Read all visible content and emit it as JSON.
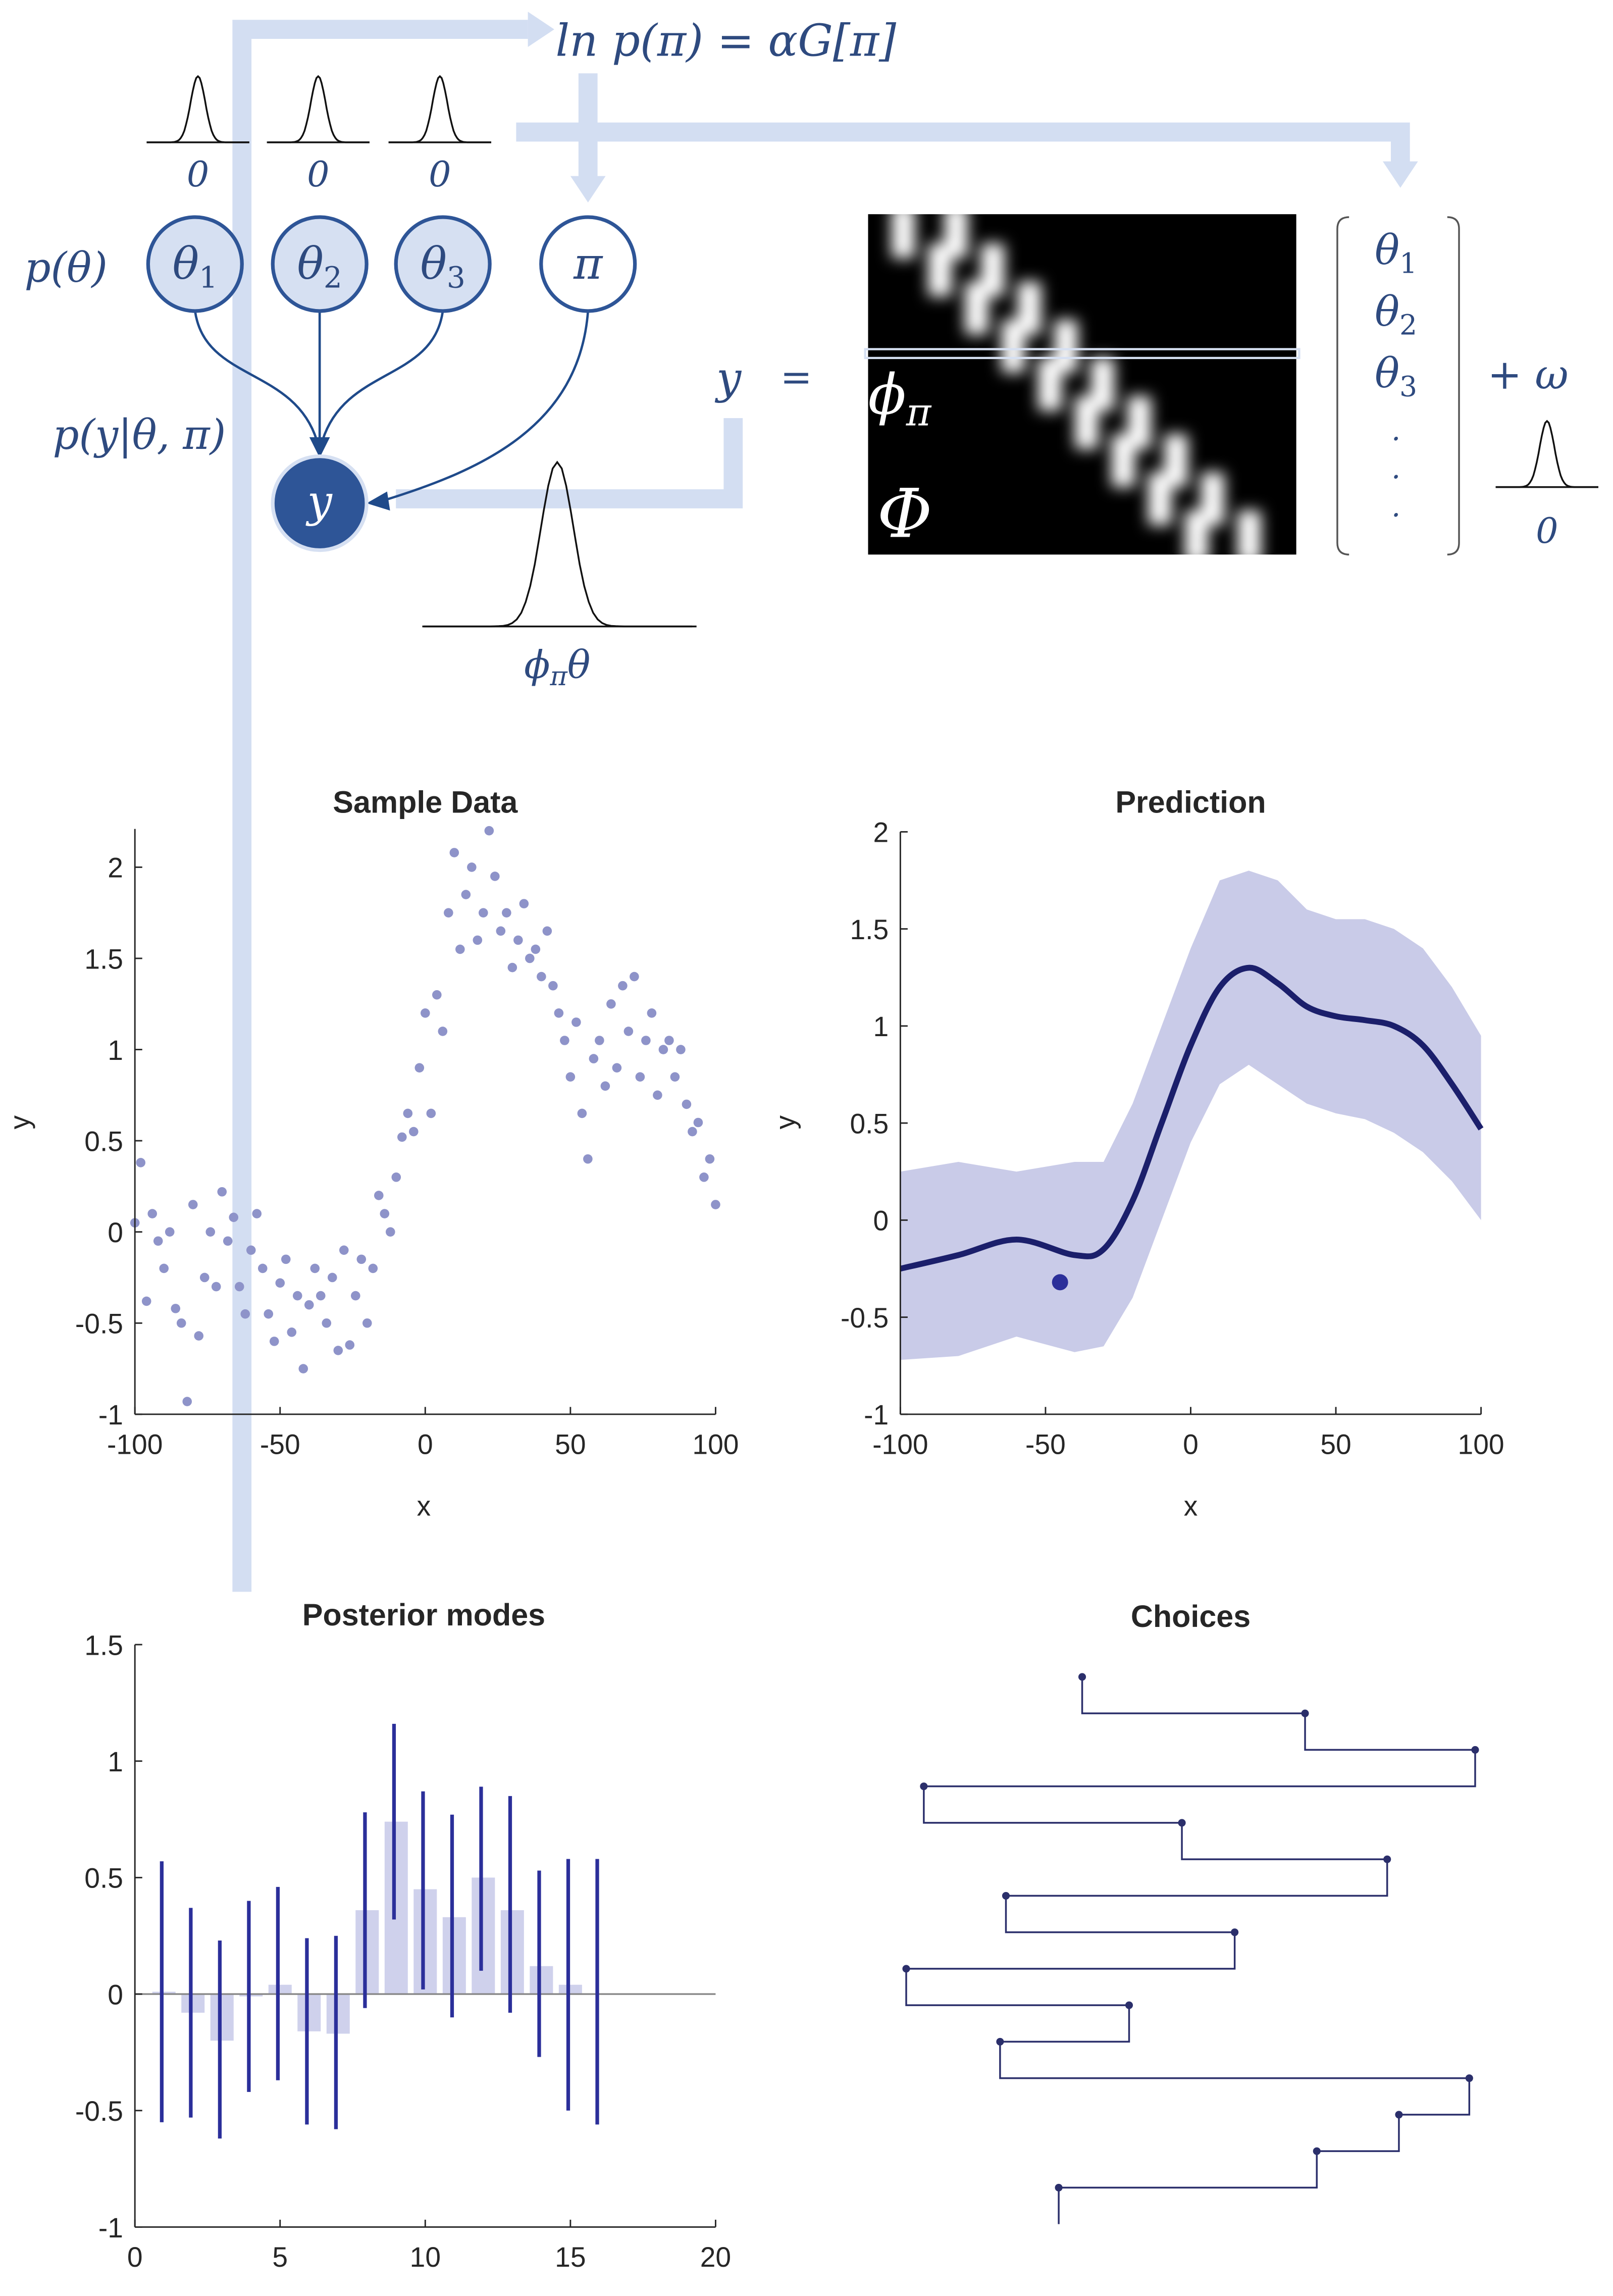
{
  "diagram": {
    "equation": "ln p(π) = αG[π]",
    "prior_zeros": [
      "0",
      "0",
      "0"
    ],
    "prior_label": "p(θ)",
    "likelihood_label": "p(y|θ, π)",
    "nodes": [
      {
        "base": "θ",
        "sub": "1"
      },
      {
        "base": "θ",
        "sub": "2"
      },
      {
        "base": "θ",
        "sub": "3"
      },
      {
        "base": "π",
        "sub": ""
      },
      {
        "base": "y",
        "sub": ""
      }
    ],
    "obs_label": {
      "base": "ϕ",
      "sub": "π",
      "tail": "θ"
    },
    "lhs": "y",
    "equals": "=",
    "row_label": {
      "base": "ϕ",
      "sub": "π"
    },
    "matrix_label": "Φ",
    "vector": [
      {
        "base": "θ",
        "sub": "1"
      },
      {
        "base": "θ",
        "sub": "2"
      },
      {
        "base": "θ",
        "sub": "3"
      },
      ".",
      ".",
      "."
    ],
    "noise": "+ ω",
    "noise_zero": "0"
  },
  "chart_data": [
    {
      "type": "scatter",
      "title": "Sample Data",
      "xlabel": "x",
      "ylabel": "y",
      "color": "#8e93c9",
      "xlim": [
        -100,
        100
      ],
      "ylim": [
        -1,
        2.21
      ],
      "xticks": [
        -100,
        -50,
        0,
        50,
        100
      ],
      "yticks": [
        -1,
        -0.5,
        0,
        0.5,
        1,
        1.5,
        2
      ],
      "x": [
        -100,
        -98,
        -96,
        -94,
        -92,
        -90,
        -88,
        -86,
        -84,
        -82,
        -80,
        -78,
        -76,
        -74,
        -72,
        -70,
        -68,
        -66,
        -64,
        -62,
        -60,
        -58,
        -56,
        -54,
        -52,
        -50,
        -48,
        -46,
        -44,
        -42,
        -40,
        -38,
        -36,
        -34,
        -32,
        -30,
        -28,
        -26,
        -24,
        -22,
        -20,
        -18,
        -16,
        -14,
        -12,
        -10,
        -8,
        -6,
        -4,
        -2,
        0,
        2,
        4,
        6,
        8,
        10,
        12,
        14,
        16,
        18,
        20,
        22,
        24,
        26,
        28,
        30,
        32,
        34,
        36,
        38,
        40,
        42,
        44,
        46,
        48,
        50,
        52,
        54,
        56,
        58,
        60,
        62,
        64,
        66,
        68,
        70,
        72,
        74,
        76,
        78,
        80,
        82,
        84,
        86,
        88,
        90,
        92,
        94,
        96,
        98,
        100
      ],
      "y": [
        0.05,
        0.38,
        -0.38,
        0.1,
        -0.05,
        -0.2,
        0.0,
        -0.42,
        -0.5,
        -0.93,
        0.15,
        -0.57,
        -0.25,
        0.0,
        -0.3,
        0.22,
        -0.05,
        0.08,
        -0.3,
        -0.45,
        -0.1,
        0.1,
        -0.2,
        -0.45,
        -0.6,
        -0.28,
        -0.15,
        -0.55,
        -0.35,
        -0.75,
        -0.4,
        -0.2,
        -0.35,
        -0.5,
        -0.25,
        -0.65,
        -0.1,
        -0.62,
        -0.35,
        -0.15,
        -0.5,
        -0.2,
        0.2,
        0.1,
        0.0,
        0.3,
        0.52,
        0.65,
        0.55,
        0.9,
        1.2,
        0.65,
        1.3,
        1.1,
        1.75,
        2.08,
        1.55,
        1.85,
        2.0,
        1.6,
        1.75,
        2.2,
        1.95,
        1.65,
        1.75,
        1.45,
        1.6,
        1.8,
        1.5,
        1.55,
        1.4,
        1.65,
        1.35,
        1.2,
        1.05,
        0.85,
        1.15,
        0.65,
        0.4,
        0.95,
        1.05,
        0.8,
        1.25,
        0.9,
        1.35,
        1.1,
        1.4,
        0.85,
        1.05,
        1.2,
        0.75,
        1.0,
        1.05,
        0.85,
        1.0,
        0.7,
        0.55,
        0.6,
        0.3,
        0.4,
        0.15
      ]
    },
    {
      "type": "line",
      "title": "Prediction",
      "xlabel": "x",
      "ylabel": "y",
      "color": "#1b1f6b",
      "band_color": "#c9cbe8",
      "point_color": "#2b2f9a",
      "xlim": [
        -100,
        100
      ],
      "ylim": [
        -1,
        2
      ],
      "xticks": [
        -100,
        -50,
        0,
        50,
        100
      ],
      "yticks": [
        -1,
        -0.5,
        0,
        0.5,
        1,
        1.5,
        2
      ],
      "x": [
        -100,
        -80,
        -60,
        -40,
        -30,
        -20,
        -10,
        0,
        10,
        20,
        30,
        40,
        50,
        60,
        70,
        80,
        90,
        100
      ],
      "mean": [
        -0.25,
        -0.18,
        -0.1,
        -0.18,
        -0.15,
        0.1,
        0.5,
        0.9,
        1.2,
        1.3,
        1.22,
        1.1,
        1.05,
        1.03,
        1.0,
        0.9,
        0.7,
        0.47
      ],
      "upper": [
        0.25,
        0.3,
        0.25,
        0.3,
        0.3,
        0.6,
        1.0,
        1.4,
        1.75,
        1.8,
        1.75,
        1.6,
        1.55,
        1.55,
        1.5,
        1.4,
        1.2,
        0.95
      ],
      "lower": [
        -0.72,
        -0.7,
        -0.6,
        -0.68,
        -0.65,
        -0.4,
        0.0,
        0.4,
        0.7,
        0.8,
        0.7,
        0.6,
        0.55,
        0.52,
        0.45,
        0.35,
        0.2,
        0.0
      ],
      "point": {
        "x": -45,
        "y": -0.32
      }
    },
    {
      "type": "bar",
      "title": "Posterior modes",
      "color": "#cfd1ec",
      "error_color": "#2b2f9a",
      "xlim": [
        0,
        20
      ],
      "ylim": [
        -1,
        1.5
      ],
      "xticks": [
        0,
        5,
        10,
        15,
        20
      ],
      "yticks": [
        -1,
        -0.5,
        0,
        0.5,
        1,
        1.5
      ],
      "x": [
        1,
        2,
        3,
        4,
        5,
        6,
        7,
        8,
        9,
        10,
        11,
        12,
        13,
        14,
        15,
        16
      ],
      "values": [
        0.01,
        -0.08,
        -0.2,
        -0.01,
        0.04,
        -0.16,
        -0.17,
        0.36,
        0.74,
        0.45,
        0.33,
        0.5,
        0.36,
        0.12,
        0.04,
        0
      ],
      "upper": [
        0.57,
        0.37,
        0.23,
        0.4,
        0.46,
        0.24,
        0.25,
        0.78,
        1.16,
        0.87,
        0.77,
        0.89,
        0.85,
        0.53,
        0.58,
        0.58
      ],
      "lower": [
        -0.55,
        -0.53,
        -0.62,
        -0.42,
        -0.37,
        -0.56,
        -0.58,
        -0.06,
        0.32,
        0.02,
        -0.1,
        0.1,
        -0.08,
        -0.27,
        -0.5,
        -0.56
      ]
    },
    {
      "type": "steps",
      "title": "Choices",
      "color": "#2b2f6b",
      "values": [
        0.32,
        0.7,
        0.99,
        0.05,
        0.49,
        0.84,
        0.19,
        0.58,
        0.02,
        0.4,
        0.18,
        0.98,
        0.86,
        0.72,
        0.28
      ]
    }
  ]
}
